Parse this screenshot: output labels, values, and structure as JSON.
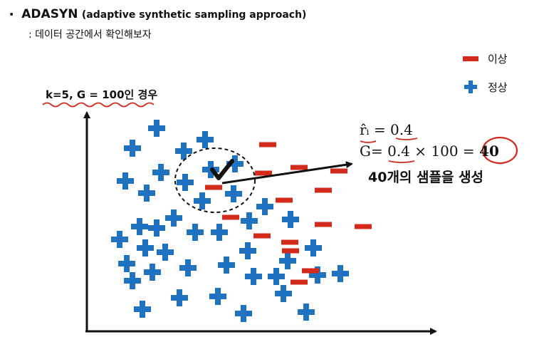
{
  "header": {
    "bullet": "•",
    "title_main": "ADASYN",
    "title_paren": "(adaptive synthetic sampling approach)",
    "subtitle": ": 데이터 공간에서 확인해보자"
  },
  "params_label": "k=5, G = 100인 경우",
  "legend": {
    "minority_label": "이상",
    "majority_label": "정상",
    "minority_color": "#d42a1c",
    "majority_color": "#1e72c0"
  },
  "formula": {
    "r_label": "r̂ᵢ = 0.4",
    "g_prefix": "G= ",
    "g_ratio": "0.4",
    "g_rest": " × 100 = ",
    "g_result": "40",
    "result_text": "40개의 샘플을 생성"
  },
  "colors": {
    "annotation_red": "#d42a1c",
    "axis": "#111111"
  },
  "points": {
    "majority": [
      [
        220,
        180
      ],
      [
        186,
        208
      ],
      [
        288,
        196
      ],
      [
        258,
        212
      ],
      [
        226,
        242
      ],
      [
        176,
        254
      ],
      [
        206,
        271
      ],
      [
        260,
        256
      ],
      [
        296,
        238
      ],
      [
        330,
        230
      ],
      [
        284,
        282
      ],
      [
        328,
        272
      ],
      [
        372,
        290
      ],
      [
        244,
        306
      ],
      [
        196,
        318
      ],
      [
        220,
        320
      ],
      [
        274,
        326
      ],
      [
        308,
        326
      ],
      [
        350,
        310
      ],
      [
        408,
        308
      ],
      [
        168,
        336
      ],
      [
        204,
        348
      ],
      [
        232,
        354
      ],
      [
        348,
        352
      ],
      [
        440,
        348
      ],
      [
        178,
        370
      ],
      [
        186,
        394
      ],
      [
        214,
        382
      ],
      [
        264,
        376
      ],
      [
        318,
        372
      ],
      [
        404,
        366
      ],
      [
        356,
        388
      ],
      [
        388,
        388
      ],
      [
        446,
        386
      ],
      [
        478,
        384
      ],
      [
        252,
        418
      ],
      [
        306,
        416
      ],
      [
        398,
        412
      ],
      [
        200,
        434
      ],
      [
        342,
        440
      ],
      [
        430,
        438
      ]
    ],
    "minority": [
      [
        376,
        203
      ],
      [
        370,
        243
      ],
      [
        420,
        235
      ],
      [
        300,
        263
      ],
      [
        399,
        281
      ],
      [
        454,
        267
      ],
      [
        476,
        240
      ],
      [
        324,
        305
      ],
      [
        454,
        315
      ],
      [
        510,
        318
      ],
      [
        368,
        331
      ],
      [
        407,
        340
      ],
      [
        408,
        352
      ],
      [
        420,
        396
      ],
      [
        436,
        380
      ]
    ]
  }
}
